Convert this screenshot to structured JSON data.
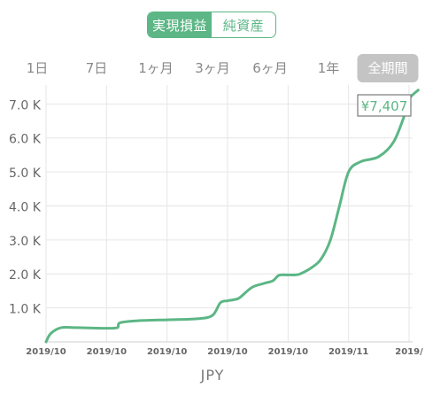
{
  "toggle": {
    "realized_label": "実現損益",
    "net_assets_label": "純資産",
    "active": "realized"
  },
  "periods": [
    {
      "label": "1日",
      "active": false
    },
    {
      "label": "7日",
      "active": false
    },
    {
      "label": "1ヶ月",
      "active": false
    },
    {
      "label": "3ヶ月",
      "active": false
    },
    {
      "label": "6ヶ月",
      "active": false
    },
    {
      "label": "1年",
      "active": false
    },
    {
      "label": "全期間",
      "active": true
    }
  ],
  "colors": {
    "accent": "#5cb685",
    "active_period_bg": "#c4c4c4",
    "grid": "#e6e6e6"
  },
  "chart_data": {
    "type": "line",
    "ylim": [
      0,
      7400
    ],
    "yticks": [
      1000,
      2000,
      3000,
      4000,
      5000,
      6000,
      7000
    ],
    "ytick_labels": [
      "1.0 K",
      "2.0 K",
      "3.0 K",
      "4.0 K",
      "5.0 K",
      "6.0 K",
      "7.0 K"
    ],
    "xticks": [
      0,
      1,
      2,
      3,
      4,
      5,
      6
    ],
    "xtick_labels": [
      "2019/10",
      "2019/10",
      "2019/10",
      "2019/10",
      "2019/10",
      "2019/11",
      "2019/"
    ],
    "xlim": [
      0,
      6
    ],
    "grid": true,
    "series": [
      {
        "x": [
          0,
          0.08,
          0.25,
          0.5,
          1.0,
          1.18,
          1.22,
          1.5,
          2.0,
          2.5,
          2.75,
          2.88,
          3.0,
          3.1,
          3.2,
          3.4,
          3.6,
          3.75,
          3.85,
          4.0,
          4.1,
          4.2,
          4.4,
          4.55,
          4.7,
          4.85,
          5.0,
          5.2,
          5.5,
          5.75,
          5.95,
          6.0,
          6.15
        ],
        "y": [
          0,
          250,
          420,
          420,
          400,
          420,
          560,
          620,
          650,
          680,
          780,
          1150,
          1210,
          1240,
          1300,
          1600,
          1720,
          1800,
          1960,
          1970,
          1970,
          2000,
          2200,
          2450,
          3000,
          4000,
          5000,
          5300,
          5450,
          5900,
          6800,
          7150,
          7407
        ]
      }
    ],
    "annotation": {
      "label": "¥7,407"
    },
    "currency_label": "JPY"
  }
}
